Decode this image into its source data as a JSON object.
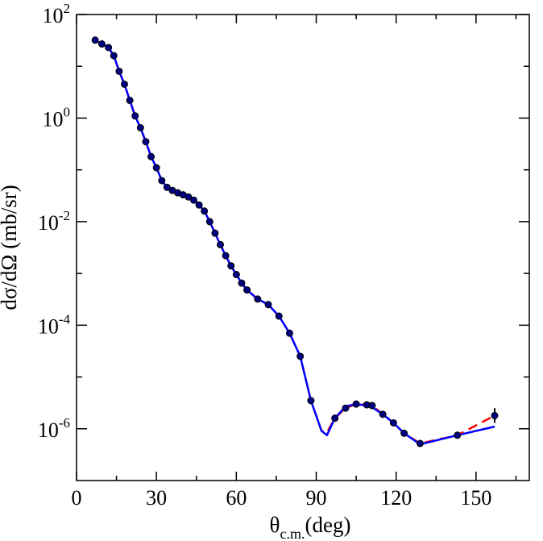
{
  "chart_data": {
    "type": "scatter",
    "title": "",
    "xlabel": {
      "main": "θ",
      "sub": "c.m.",
      "suffix": "(deg)"
    },
    "ylabel": "dσ/dΩ (mb/sr)",
    "xlim": [
      0,
      170
    ],
    "ylim": [
      1e-07,
      100
    ],
    "yscale": "log",
    "x_ticks": [
      0,
      30,
      60,
      90,
      120,
      150
    ],
    "x_tick_labels": [
      "0",
      "30",
      "60",
      "90",
      "120",
      "150"
    ],
    "y_ticks": [
      {
        "value": 100,
        "base": "10",
        "exp": "2"
      },
      {
        "value": 1,
        "base": "10",
        "exp": "0"
      },
      {
        "value": 0.01,
        "base": "10",
        "exp": "-2"
      },
      {
        "value": 0.0001,
        "base": "10",
        "exp": "-4"
      },
      {
        "value": 1e-06,
        "base": "10",
        "exp": "-6"
      }
    ],
    "grid": false,
    "series": [
      {
        "kind": "line",
        "color": "#ff0000",
        "dash": "dashed",
        "x": [
          7,
          9.5,
          12,
          14,
          16,
          18,
          20,
          22,
          24,
          26,
          28,
          30,
          32,
          34,
          36,
          38,
          40,
          42,
          44,
          46,
          48,
          50,
          52,
          54,
          56,
          58,
          60,
          62,
          64,
          68,
          72,
          76,
          80,
          84,
          88,
          92,
          94,
          97,
          101,
          105,
          109,
          111,
          115,
          119,
          123,
          129,
          143,
          157
        ],
        "y": [
          32,
          27,
          23,
          16,
          8,
          4.5,
          2.2,
          1.1,
          0.65,
          0.35,
          0.18,
          0.11,
          0.062,
          0.046,
          0.04,
          0.036,
          0.033,
          0.03,
          0.026,
          0.021,
          0.016,
          0.01,
          0.006,
          0.0036,
          0.0022,
          0.0014,
          0.00095,
          0.00065,
          0.00048,
          0.00032,
          0.00025,
          0.00015,
          7e-05,
          2.5e-05,
          3.5e-06,
          9.1e-07,
          8.5e-07,
          1.6e-06,
          2.5e-06,
          3e-06,
          2.9e-06,
          2.8e-06,
          1.9e-06,
          1.3e-06,
          8.2e-07,
          5.2e-07,
          7.5e-07,
          1.8e-06
        ]
      },
      {
        "kind": "line",
        "color": "#0000ff",
        "dash": "solid",
        "x": [
          7,
          9.5,
          12,
          14,
          16,
          18,
          20,
          22,
          24,
          26,
          28,
          30,
          32,
          34,
          36,
          38,
          40,
          42,
          44,
          46,
          48,
          50,
          52,
          54,
          56,
          58,
          60,
          62,
          64,
          68,
          72,
          76,
          80,
          84,
          88,
          92,
          94,
          97,
          101,
          105,
          109,
          111,
          115,
          119,
          123,
          129,
          143,
          157
        ],
        "y": [
          32,
          27,
          23,
          16,
          8,
          4.5,
          2.2,
          1.1,
          0.65,
          0.35,
          0.18,
          0.11,
          0.062,
          0.046,
          0.04,
          0.036,
          0.033,
          0.03,
          0.026,
          0.021,
          0.016,
          0.01,
          0.006,
          0.0036,
          0.0022,
          0.0014,
          0.00095,
          0.00065,
          0.00048,
          0.00032,
          0.00025,
          0.00015,
          7e-05,
          2.5e-05,
          3.5e-06,
          9.1e-07,
          7.5e-07,
          1.6e-06,
          2.7e-06,
          3e-06,
          2.8e-06,
          2.6e-06,
          1.9e-06,
          1.3e-06,
          8.2e-07,
          5e-07,
          7.5e-07,
          1.1e-06
        ]
      },
      {
        "kind": "scatter",
        "color": "#000000",
        "marker_fill": "#000080",
        "x": [
          7,
          9.5,
          12,
          14,
          16,
          18,
          20,
          22,
          24,
          26,
          28,
          30,
          32,
          34,
          36,
          38,
          40,
          42,
          44,
          46,
          48,
          50,
          52,
          54,
          56,
          58,
          60,
          62,
          64,
          68,
          72,
          76,
          80,
          84,
          88,
          97,
          101,
          105,
          109,
          111,
          115,
          119,
          123,
          129,
          143,
          157
        ],
        "y": [
          32,
          27,
          23,
          16,
          8,
          4.5,
          2.2,
          1.1,
          0.65,
          0.35,
          0.18,
          0.11,
          0.062,
          0.046,
          0.04,
          0.036,
          0.033,
          0.03,
          0.026,
          0.021,
          0.016,
          0.01,
          0.006,
          0.0036,
          0.0022,
          0.0014,
          0.00095,
          0.00065,
          0.00048,
          0.00032,
          0.00025,
          0.00015,
          7e-05,
          2.5e-05,
          3.5e-06,
          1.6e-06,
          2.5e-06,
          3e-06,
          2.9e-06,
          2.8e-06,
          1.9e-06,
          1.3e-06,
          8.2e-07,
          5.2e-07,
          7.5e-07,
          1.8e-06
        ],
        "yerr_index": [
          0,
          1,
          45
        ],
        "yerr_low": [
          28,
          24,
          1.3e-06
        ],
        "yerr_high": [
          37,
          31,
          2.5e-06
        ]
      }
    ]
  }
}
